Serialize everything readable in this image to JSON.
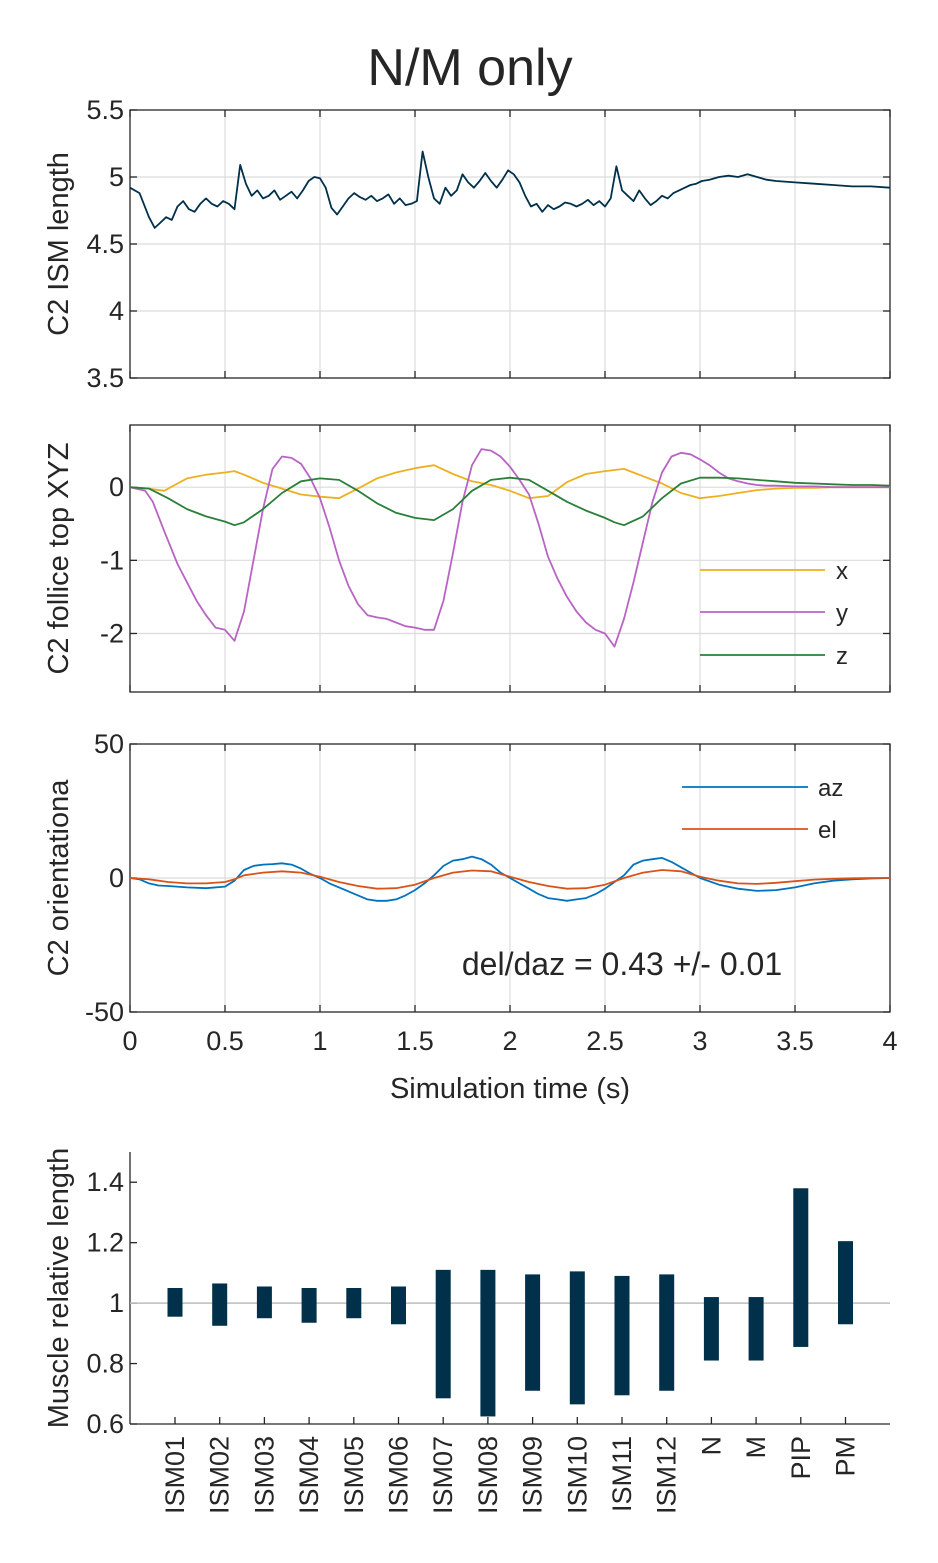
{
  "figure_title": "N/M only",
  "chart_data": [
    {
      "type": "line",
      "ylabel": "C2 ISM length",
      "xlim": [
        0,
        4
      ],
      "ylim": [
        3.5,
        5.5
      ],
      "yticks": [
        "3.5",
        "4",
        "4.5",
        "5",
        "5.5"
      ],
      "xticks_shown": false,
      "grid": true,
      "series": [
        {
          "color": "#00304a",
          "x": [
            0,
            0.05,
            0.1,
            0.13,
            0.16,
            0.19,
            0.22,
            0.25,
            0.28,
            0.31,
            0.34,
            0.37,
            0.4,
            0.43,
            0.46,
            0.49,
            0.52,
            0.55,
            0.58,
            0.61,
            0.64,
            0.67,
            0.7,
            0.73,
            0.76,
            0.79,
            0.82,
            0.85,
            0.88,
            0.91,
            0.94,
            0.97,
            1.0,
            1.03,
            1.06,
            1.09,
            1.12,
            1.15,
            1.18,
            1.21,
            1.24,
            1.27,
            1.3,
            1.33,
            1.36,
            1.39,
            1.42,
            1.45,
            1.48,
            1.51,
            1.54,
            1.57,
            1.6,
            1.63,
            1.66,
            1.69,
            1.72,
            1.75,
            1.78,
            1.81,
            1.84,
            1.87,
            1.9,
            1.93,
            1.96,
            1.99,
            2.02,
            2.05,
            2.08,
            2.11,
            2.14,
            2.17,
            2.2,
            2.23,
            2.26,
            2.29,
            2.32,
            2.35,
            2.38,
            2.41,
            2.44,
            2.47,
            2.5,
            2.53,
            2.56,
            2.59,
            2.62,
            2.65,
            2.68,
            2.71,
            2.74,
            2.77,
            2.8,
            2.83,
            2.86,
            2.89,
            2.92,
            2.95,
            2.98,
            3.01,
            3.05,
            3.1,
            3.15,
            3.2,
            3.25,
            3.3,
            3.35,
            3.4,
            3.5,
            3.6,
            3.7,
            3.8,
            3.9,
            4.0
          ],
          "y": [
            4.92,
            4.88,
            4.7,
            4.62,
            4.66,
            4.7,
            4.68,
            4.78,
            4.82,
            4.76,
            4.74,
            4.8,
            4.84,
            4.8,
            4.78,
            4.82,
            4.8,
            4.76,
            5.09,
            4.95,
            4.86,
            4.9,
            4.84,
            4.86,
            4.9,
            4.83,
            4.86,
            4.89,
            4.84,
            4.9,
            4.97,
            5.0,
            4.99,
            4.92,
            4.77,
            4.72,
            4.78,
            4.84,
            4.88,
            4.85,
            4.83,
            4.86,
            4.82,
            4.84,
            4.87,
            4.8,
            4.84,
            4.79,
            4.8,
            4.82,
            5.19,
            5.0,
            4.84,
            4.8,
            4.92,
            4.86,
            4.9,
            5.02,
            4.96,
            4.92,
            4.97,
            5.03,
            4.97,
            4.92,
            4.98,
            5.05,
            5.02,
            4.96,
            4.86,
            4.78,
            4.8,
            4.74,
            4.79,
            4.76,
            4.78,
            4.81,
            4.8,
            4.78,
            4.8,
            4.83,
            4.79,
            4.82,
            4.78,
            4.84,
            5.08,
            4.9,
            4.86,
            4.82,
            4.9,
            4.84,
            4.79,
            4.82,
            4.86,
            4.84,
            4.88,
            4.9,
            4.92,
            4.94,
            4.95,
            4.97,
            4.98,
            5.0,
            5.01,
            5.0,
            5.02,
            5.0,
            4.98,
            4.97,
            4.96,
            4.95,
            4.94,
            4.93,
            4.93,
            4.92
          ]
        }
      ]
    },
    {
      "type": "line",
      "ylabel": "C2 follice top XYZ",
      "xlim": [
        0,
        4
      ],
      "ylim": [
        -2.8,
        0.85
      ],
      "yticks": [
        "-2",
        "-1",
        "0"
      ],
      "xticks_shown": false,
      "grid": true,
      "legend_position": "bottom-right",
      "series": [
        {
          "name": "x",
          "color": "#edb120",
          "x": [
            0,
            0.1,
            0.18,
            0.25,
            0.3,
            0.4,
            0.5,
            0.55,
            0.6,
            0.7,
            0.8,
            0.9,
            1.0,
            1.1,
            1.2,
            1.3,
            1.4,
            1.5,
            1.6,
            1.7,
            1.8,
            1.9,
            2.0,
            2.1,
            2.2,
            2.3,
            2.4,
            2.5,
            2.6,
            2.7,
            2.8,
            2.9,
            3.0,
            3.1,
            3.2,
            3.3,
            3.4,
            3.5,
            3.6,
            3.7,
            3.8,
            3.9,
            4.0
          ],
          "y": [
            0.0,
            -0.02,
            -0.05,
            0.05,
            0.12,
            0.17,
            0.2,
            0.22,
            0.17,
            0.06,
            -0.02,
            -0.1,
            -0.13,
            -0.15,
            -0.02,
            0.12,
            0.2,
            0.26,
            0.3,
            0.18,
            0.08,
            0.03,
            -0.05,
            -0.15,
            -0.12,
            0.07,
            0.18,
            0.22,
            0.25,
            0.15,
            0.05,
            -0.08,
            -0.15,
            -0.12,
            -0.08,
            -0.04,
            -0.02,
            -0.01,
            -0.01,
            0.0,
            0.0,
            0.0,
            0.0
          ]
        },
        {
          "name": "y",
          "color": "#b964c4",
          "x": [
            0,
            0.08,
            0.12,
            0.18,
            0.25,
            0.3,
            0.35,
            0.4,
            0.45,
            0.5,
            0.55,
            0.6,
            0.65,
            0.7,
            0.75,
            0.8,
            0.85,
            0.9,
            0.95,
            1.0,
            1.05,
            1.1,
            1.15,
            1.2,
            1.25,
            1.3,
            1.35,
            1.4,
            1.45,
            1.5,
            1.55,
            1.6,
            1.65,
            1.7,
            1.75,
            1.8,
            1.85,
            1.9,
            1.95,
            2.0,
            2.05,
            2.1,
            2.15,
            2.2,
            2.25,
            2.3,
            2.35,
            2.4,
            2.45,
            2.5,
            2.55,
            2.6,
            2.65,
            2.7,
            2.75,
            2.8,
            2.85,
            2.9,
            2.95,
            3.0,
            3.05,
            3.1,
            3.15,
            3.2,
            3.25,
            3.3,
            3.35,
            3.4,
            3.5,
            3.6,
            3.7,
            3.8,
            3.9,
            4.0
          ],
          "y": [
            0.0,
            -0.05,
            -0.2,
            -0.6,
            -1.05,
            -1.3,
            -1.55,
            -1.75,
            -1.92,
            -1.95,
            -2.1,
            -1.7,
            -1.0,
            -0.3,
            0.25,
            0.42,
            0.4,
            0.32,
            0.12,
            -0.15,
            -0.55,
            -1.0,
            -1.35,
            -1.6,
            -1.75,
            -1.78,
            -1.8,
            -1.85,
            -1.9,
            -1.92,
            -1.95,
            -1.95,
            -1.55,
            -0.9,
            -0.2,
            0.3,
            0.52,
            0.5,
            0.42,
            0.28,
            0.1,
            -0.1,
            -0.5,
            -0.95,
            -1.25,
            -1.5,
            -1.7,
            -1.85,
            -1.95,
            -2.0,
            -2.18,
            -1.8,
            -1.3,
            -0.75,
            -0.2,
            0.2,
            0.42,
            0.47,
            0.45,
            0.38,
            0.3,
            0.2,
            0.12,
            0.08,
            0.05,
            0.03,
            0.02,
            0.02,
            0.01,
            0.01,
            0.0,
            0.0,
            0.0,
            0.0
          ]
        },
        {
          "name": "z",
          "color": "#2a7f3a",
          "x": [
            0,
            0.1,
            0.2,
            0.3,
            0.4,
            0.5,
            0.55,
            0.6,
            0.7,
            0.8,
            0.9,
            1.0,
            1.1,
            1.2,
            1.3,
            1.4,
            1.5,
            1.6,
            1.7,
            1.8,
            1.9,
            2.0,
            2.1,
            2.2,
            2.3,
            2.4,
            2.5,
            2.55,
            2.6,
            2.7,
            2.8,
            2.9,
            3.0,
            3.1,
            3.2,
            3.3,
            3.4,
            3.5,
            3.6,
            3.7,
            3.8,
            3.9,
            4.0
          ],
          "y": [
            0.0,
            -0.02,
            -0.15,
            -0.3,
            -0.4,
            -0.47,
            -0.52,
            -0.48,
            -0.3,
            -0.08,
            0.08,
            0.12,
            0.1,
            -0.05,
            -0.22,
            -0.35,
            -0.42,
            -0.45,
            -0.3,
            -0.05,
            0.1,
            0.13,
            0.1,
            -0.05,
            -0.2,
            -0.32,
            -0.42,
            -0.48,
            -0.52,
            -0.4,
            -0.15,
            0.05,
            0.13,
            0.13,
            0.12,
            0.1,
            0.08,
            0.06,
            0.05,
            0.04,
            0.03,
            0.03,
            0.02
          ]
        }
      ]
    },
    {
      "type": "line",
      "ylabel": "C2 orientationa",
      "xlabel": "Simulation time (s)",
      "xlim": [
        0,
        4
      ],
      "ylim": [
        -50,
        50
      ],
      "yticks": [
        "-50",
        "0",
        "50"
      ],
      "xticks": [
        "0",
        "0.5",
        "1",
        "1.5",
        "2",
        "2.5",
        "3",
        "3.5",
        "4"
      ],
      "xticks_shown": true,
      "grid": true,
      "legend_position": "top-right",
      "annotation": "del/daz = 0.43 +/- 0.01",
      "series": [
        {
          "name": "az",
          "color": "#0072bd",
          "x": [
            0,
            0.05,
            0.1,
            0.15,
            0.2,
            0.3,
            0.4,
            0.5,
            0.55,
            0.6,
            0.65,
            0.7,
            0.75,
            0.8,
            0.85,
            0.9,
            0.95,
            1.0,
            1.05,
            1.1,
            1.15,
            1.2,
            1.25,
            1.3,
            1.35,
            1.4,
            1.45,
            1.5,
            1.55,
            1.6,
            1.65,
            1.7,
            1.75,
            1.8,
            1.85,
            1.9,
            1.95,
            2.0,
            2.05,
            2.1,
            2.15,
            2.2,
            2.25,
            2.3,
            2.35,
            2.4,
            2.45,
            2.5,
            2.55,
            2.6,
            2.65,
            2.7,
            2.75,
            2.8,
            2.85,
            2.9,
            2.95,
            3.0,
            3.1,
            3.2,
            3.3,
            3.4,
            3.5,
            3.6,
            3.7,
            3.8,
            3.9,
            4.0
          ],
          "y": [
            0.0,
            -0.5,
            -2.0,
            -2.8,
            -3.0,
            -3.5,
            -3.8,
            -3.2,
            -1.0,
            3.0,
            4.5,
            5.0,
            5.2,
            5.5,
            5.0,
            3.5,
            1.5,
            0.0,
            -2.0,
            -3.5,
            -5.0,
            -6.5,
            -8.0,
            -8.5,
            -8.5,
            -8.0,
            -6.5,
            -4.5,
            -2.0,
            1.0,
            4.5,
            6.5,
            7.0,
            8.0,
            7.0,
            5.0,
            2.0,
            0.0,
            -2.0,
            -4.0,
            -6.0,
            -7.5,
            -8.0,
            -8.5,
            -8.0,
            -7.5,
            -6.0,
            -4.0,
            -1.5,
            1.0,
            5.0,
            6.5,
            7.0,
            7.5,
            6.0,
            4.0,
            2.0,
            0.0,
            -2.5,
            -4.0,
            -4.8,
            -4.5,
            -3.5,
            -2.0,
            -1.0,
            -0.5,
            -0.2,
            0.0
          ]
        },
        {
          "name": "el",
          "color": "#d95319",
          "x": [
            0,
            0.1,
            0.2,
            0.3,
            0.4,
            0.5,
            0.55,
            0.6,
            0.7,
            0.8,
            0.9,
            1.0,
            1.1,
            1.2,
            1.3,
            1.4,
            1.5,
            1.6,
            1.7,
            1.8,
            1.9,
            2.0,
            2.1,
            2.2,
            2.3,
            2.4,
            2.5,
            2.6,
            2.7,
            2.8,
            2.9,
            3.0,
            3.1,
            3.2,
            3.3,
            3.4,
            3.5,
            3.6,
            3.7,
            3.8,
            3.9,
            4.0
          ],
          "y": [
            0.0,
            -0.5,
            -1.5,
            -2.0,
            -2.0,
            -1.5,
            -0.5,
            1.0,
            2.0,
            2.5,
            2.0,
            0.5,
            -1.5,
            -3.0,
            -4.0,
            -3.8,
            -2.5,
            0.0,
            2.0,
            2.8,
            2.5,
            0.5,
            -1.5,
            -3.0,
            -4.0,
            -3.8,
            -2.5,
            0.0,
            2.0,
            3.0,
            2.5,
            0.5,
            -1.0,
            -2.0,
            -2.2,
            -1.8,
            -1.2,
            -0.6,
            -0.3,
            -0.1,
            0.0,
            0.0
          ]
        }
      ]
    },
    {
      "type": "bar",
      "ylabel": "Muscle relative length",
      "ylim": [
        0.6,
        1.5
      ],
      "yticks": [
        "0.6",
        "0.8",
        "1",
        "1.2",
        "1.4"
      ],
      "reference_line": 1,
      "bar_style": "floating range (min to max)",
      "color": "#00304a",
      "categories": [
        "ISM01",
        "ISM02",
        "ISM03",
        "ISM04",
        "ISM05",
        "ISM06",
        "ISM07",
        "ISM08",
        "ISM09",
        "ISM10",
        "ISM11",
        "ISM12",
        "N",
        "M",
        "PIP",
        "PM"
      ],
      "min": [
        0.955,
        0.925,
        0.95,
        0.935,
        0.95,
        0.93,
        0.685,
        0.625,
        0.71,
        0.665,
        0.695,
        0.71,
        0.81,
        0.81,
        0.855,
        0.93
      ],
      "max": [
        1.05,
        1.065,
        1.055,
        1.05,
        1.05,
        1.055,
        1.11,
        1.11,
        1.095,
        1.105,
        1.09,
        1.095,
        1.02,
        1.02,
        1.38,
        1.205
      ]
    }
  ]
}
